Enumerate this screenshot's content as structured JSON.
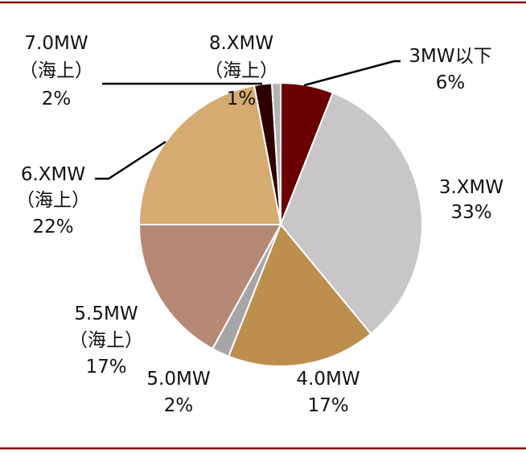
{
  "chart_data": {
    "type": "pie",
    "title": "",
    "slices": [
      {
        "label": "3MW以下",
        "sub": "",
        "pct_label": "6%",
        "value": 6,
        "color": "#6b0000"
      },
      {
        "label": "3.XMW",
        "sub": "",
        "pct_label": "33%",
        "value": 33,
        "color": "#c8c6c8"
      },
      {
        "label": "4.0MW",
        "sub": "",
        "pct_label": "17%",
        "value": 17,
        "color": "#bd8f4e"
      },
      {
        "label": "5.0MW",
        "sub": "",
        "pct_label": "2%",
        "value": 2,
        "color": "#a7a5a7"
      },
      {
        "label": "5.5MW",
        "sub": "（海上）",
        "pct_label": "17%",
        "value": 17,
        "color": "#b68977"
      },
      {
        "label": "6.XMW",
        "sub": "（海上）",
        "pct_label": "22%",
        "value": 22,
        "color": "#d5ab72"
      },
      {
        "label": "7.0MW",
        "sub": "（海上）",
        "pct_label": "2%",
        "value": 2,
        "color": "#2e0000"
      },
      {
        "label": "8.XMW",
        "sub": "（海上）",
        "pct_label": "1%",
        "value": 1,
        "color": "#b3b1b3"
      }
    ],
    "colors": {
      "frame": "#8b0000",
      "edge": "#ffffff",
      "leader": "#000000"
    }
  }
}
